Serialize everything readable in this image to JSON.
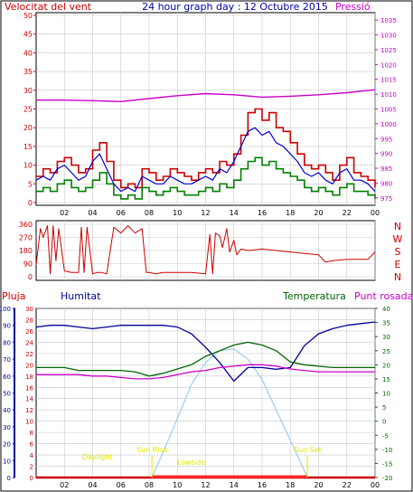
{
  "colors": {
    "wind_red": "#cc0000",
    "wind_green": "#008000",
    "wind_blue": "#0000cc",
    "pressure": "#cc00cc",
    "humidity": "#000099",
    "temperature": "#006600",
    "dewpoint": "#cc00cc",
    "rain": "#cc0000",
    "solar": "#9ecbf0",
    "daylight_label": "#e6e600",
    "grid": "#c8c8c8",
    "frame": "#000000",
    "title": "#0000aa"
  },
  "header": {
    "wind_label": "Velocitat del vent",
    "title": "24 hour graph day : 12 Octubre 2015",
    "pressure_label": "Pressió"
  },
  "bottom_header": {
    "rain_label": "Pluja",
    "humidity_label": "Humitat",
    "temperature_label": "Temperatura",
    "dewpoint_label": "Punt rosada"
  },
  "direction_labels": [
    "N",
    "W",
    "S",
    "E",
    "N"
  ],
  "daylight_labels": {
    "daylight": "Daylight",
    "sun_rise": "Sun Rise",
    "lowtide": "Lowtide",
    "sun_set": "Sun Set"
  },
  "chart_data": [
    {
      "type": "line",
      "name": "wind-pressure",
      "x_tick_labels": [
        "02",
        "04",
        "06",
        "08",
        "10",
        "12",
        "14",
        "16",
        "18",
        "20",
        "22",
        "00"
      ],
      "y_left_ticks": [
        "0",
        "5",
        "10",
        "15",
        "20",
        "25",
        "30",
        "35",
        "40",
        "45",
        "50"
      ],
      "y_right_ticks": [
        "975",
        "980",
        "985",
        "990",
        "995",
        "1000",
        "1005",
        "1010",
        "1015",
        "1020",
        "1025",
        "1030",
        "1035"
      ],
      "ylim_left": [
        0,
        50
      ],
      "ylim_right": [
        972.5,
        1037.5
      ],
      "xlim": [
        0,
        24
      ],
      "grid": true,
      "gust_max": {
        "x": [
          0,
          0.5,
          1,
          1.5,
          2,
          2.5,
          3,
          3.5,
          4,
          4.5,
          5,
          5.5,
          6,
          6.5,
          7,
          7.5,
          8,
          8.5,
          9,
          9.5,
          10,
          10.5,
          11,
          11.5,
          12,
          12.5,
          13,
          13.5,
          14,
          14.5,
          15,
          15.5,
          16,
          16.5,
          17,
          17.5,
          18,
          18.5,
          19,
          19.5,
          20,
          20.5,
          21,
          21.5,
          22,
          22.5,
          23,
          23.5,
          24
        ],
        "y": [
          7,
          9,
          8,
          11,
          12,
          10,
          8,
          9,
          14,
          16,
          11,
          6,
          4,
          5,
          4,
          9,
          8,
          6,
          7,
          9,
          8,
          7,
          6,
          8,
          9,
          8,
          11,
          10,
          13,
          18,
          24,
          25,
          22,
          24,
          20,
          19,
          16,
          13,
          10,
          9,
          10,
          8,
          6,
          10,
          12,
          8,
          7,
          6,
          4
        ]
      },
      "wind_avg": {
        "x": [
          0,
          0.5,
          1,
          1.5,
          2,
          2.5,
          3,
          3.5,
          4,
          4.5,
          5,
          5.5,
          6,
          6.5,
          7,
          7.5,
          8,
          8.5,
          9,
          9.5,
          10,
          10.5,
          11,
          11.5,
          12,
          12.5,
          13,
          13.5,
          14,
          14.5,
          15,
          15.5,
          16,
          16.5,
          17,
          17.5,
          18,
          18.5,
          19,
          19.5,
          20,
          20.5,
          21,
          21.5,
          22,
          22.5,
          23,
          23.5,
          24
        ],
        "y": [
          6,
          7,
          6,
          9,
          10,
          8,
          6,
          7,
          11,
          13,
          9,
          5,
          3,
          4,
          3,
          7,
          6,
          5,
          5,
          7,
          6,
          5,
          5,
          6,
          7,
          6,
          9,
          8,
          11,
          15,
          19,
          20,
          18,
          19,
          16,
          15,
          13,
          11,
          8,
          7,
          8,
          6,
          5,
          8,
          9,
          6,
          6,
          5,
          3
        ]
      },
      "wind_min": {
        "x": [
          0,
          0.5,
          1,
          1.5,
          2,
          2.5,
          3,
          3.5,
          4,
          4.5,
          5,
          5.5,
          6,
          6.5,
          7,
          7.5,
          8,
          8.5,
          9,
          9.5,
          10,
          10.5,
          11,
          11.5,
          12,
          12.5,
          13,
          13.5,
          14,
          14.5,
          15,
          15.5,
          16,
          16.5,
          17,
          17.5,
          18,
          18.5,
          19,
          19.5,
          20,
          20.5,
          21,
          21.5,
          22,
          22.5,
          23,
          23.5,
          24
        ],
        "y": [
          3,
          4,
          3,
          5,
          6,
          4,
          3,
          4,
          6,
          8,
          5,
          2,
          1,
          2,
          1,
          4,
          3,
          2,
          3,
          4,
          3,
          2,
          2,
          3,
          4,
          3,
          5,
          4,
          6,
          9,
          11,
          12,
          10,
          11,
          9,
          8,
          7,
          6,
          4,
          3,
          4,
          3,
          2,
          4,
          5,
          3,
          3,
          2,
          1
        ]
      },
      "pressure": {
        "x": [
          0,
          2,
          4,
          6,
          8,
          10,
          12,
          14,
          16,
          18,
          20,
          22,
          24
        ],
        "y": [
          1008,
          1008,
          1007.8,
          1007.5,
          1008.5,
          1009.5,
          1010.2,
          1009.8,
          1009,
          1009.3,
          1009.8,
          1010.5,
          1011.5
        ]
      }
    },
    {
      "type": "line",
      "name": "wind-direction",
      "y_ticks": [
        "0",
        "90",
        "180",
        "270",
        "360"
      ],
      "ylim": [
        0,
        360
      ],
      "xlim": [
        0,
        24
      ],
      "grid": true,
      "direction": {
        "x": [
          0,
          0.3,
          0.5,
          0.8,
          1,
          1.2,
          1.4,
          1.6,
          2,
          2.5,
          3,
          3.2,
          3.4,
          3.6,
          4,
          4.3,
          4.6,
          5,
          5.5,
          6,
          6.5,
          7,
          7.5,
          7.8,
          8,
          8.5,
          9,
          10,
          11,
          12,
          12.3,
          12.5,
          12.7,
          13,
          13.2,
          13.5,
          13.7,
          14,
          14.2,
          14.5,
          15,
          16,
          17,
          18,
          19,
          20,
          20.5,
          21,
          22,
          23,
          23.5,
          24
        ],
        "y": [
          80,
          330,
          270,
          350,
          20,
          350,
          110,
          330,
          40,
          30,
          30,
          340,
          30,
          340,
          20,
          30,
          30,
          20,
          340,
          300,
          350,
          300,
          330,
          30,
          30,
          20,
          30,
          30,
          30,
          20,
          290,
          20,
          300,
          280,
          200,
          330,
          170,
          250,
          150,
          190,
          180,
          190,
          180,
          170,
          160,
          150,
          100,
          110,
          120,
          120,
          120,
          170
        ]
      }
    },
    {
      "type": "line",
      "name": "rain-humidity-temperature",
      "y_left_outer_ticks": [
        "0",
        "10",
        "20",
        "30",
        "40",
        "50",
        "60",
        "70",
        "80",
        "90",
        "100"
      ],
      "y_left_inner_ticks": [
        "0",
        "2",
        "4",
        "6",
        "8",
        "10",
        "12",
        "14",
        "16",
        "18",
        "20",
        "22",
        "24",
        "26",
        "28",
        "30"
      ],
      "y_right_ticks": [
        "-20",
        "-15",
        "-10",
        "-5",
        "0",
        "5",
        "10",
        "15",
        "20",
        "25",
        "30",
        "35",
        "40"
      ],
      "xlim": [
        0,
        24
      ],
      "grid": true,
      "humidity": {
        "x": [
          0,
          1,
          2,
          3,
          4,
          5,
          6,
          7,
          8,
          9,
          10,
          11,
          12,
          13,
          14,
          15,
          16,
          17,
          18,
          19,
          20,
          21,
          22,
          23,
          24
        ],
        "y": [
          89,
          90,
          90,
          89,
          88,
          89,
          90,
          90,
          90,
          90,
          89,
          85,
          77,
          68,
          57,
          65,
          65,
          64,
          65,
          78,
          85,
          88,
          90,
          91,
          92
        ]
      },
      "temperature": {
        "x": [
          0,
          1,
          2,
          3,
          4,
          5,
          6,
          7,
          8,
          9,
          10,
          11,
          12,
          13,
          14,
          15,
          16,
          17,
          18,
          19,
          20,
          21,
          22,
          23,
          24
        ],
        "y": [
          19,
          19,
          19,
          18,
          18,
          18,
          18,
          17.5,
          16,
          17,
          18.5,
          20,
          23,
          25,
          27,
          28,
          27,
          25,
          21,
          20,
          19.5,
          19,
          19,
          19,
          19
        ]
      },
      "dewpoint": {
        "x": [
          0,
          1,
          2,
          3,
          4,
          5,
          6,
          7,
          8,
          9,
          10,
          11,
          12,
          13,
          14,
          15,
          16,
          17,
          18,
          19,
          20,
          21,
          22,
          23,
          24
        ],
        "y": [
          16.5,
          16.5,
          16.5,
          16.5,
          16,
          16,
          15.5,
          15,
          15,
          15.5,
          16.5,
          17.5,
          18,
          19,
          19.5,
          20,
          20,
          19.5,
          18.5,
          18,
          17.5,
          17.5,
          17.5,
          17.5,
          17.5
        ]
      },
      "solar": {
        "x": [
          8.2,
          9,
          10,
          11,
          12,
          13,
          14,
          15,
          16,
          17,
          18,
          19,
          19.2
        ],
        "y": [
          0,
          15,
          35,
          55,
          68,
          75,
          76,
          70,
          58,
          40,
          22,
          4,
          0
        ]
      },
      "rain": {
        "x": [
          0,
          24
        ],
        "y": [
          0,
          0
        ]
      }
    }
  ]
}
